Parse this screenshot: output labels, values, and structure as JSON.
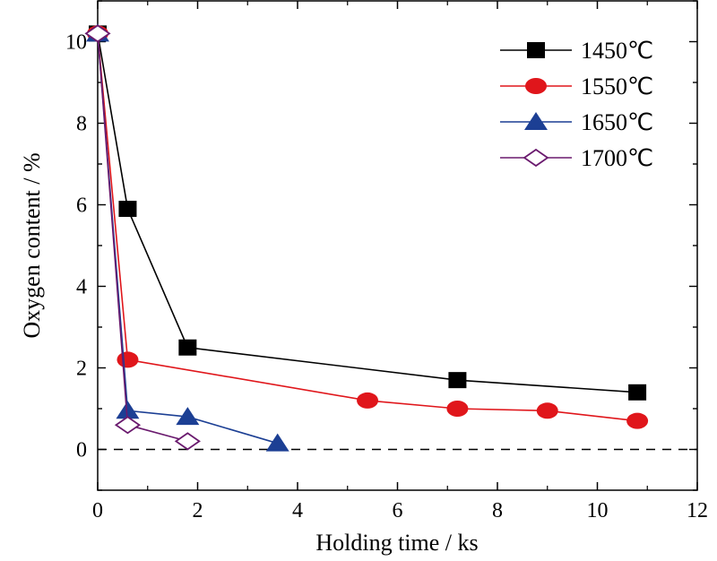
{
  "chart_data": {
    "type": "line",
    "xlabel": "Holding time / ks",
    "ylabel": "Oxygen content / %",
    "xlim": [
      0,
      12
    ],
    "ylim": [
      -1,
      11
    ],
    "xticks": [
      0,
      2,
      4,
      6,
      8,
      10,
      12
    ],
    "yticks": [
      0,
      2,
      4,
      6,
      8,
      10
    ],
    "reference_line": {
      "y": 0,
      "style": "dashed"
    },
    "legend_position": "top-right",
    "grid": false,
    "series": [
      {
        "name": "1450℃",
        "color": "#000000",
        "marker": "square",
        "x": [
          0,
          0.6,
          1.8,
          7.2,
          10.8
        ],
        "y": [
          10.2,
          5.9,
          2.5,
          1.7,
          1.4
        ]
      },
      {
        "name": "1550℃",
        "color": "#e0161b",
        "marker": "circle",
        "x": [
          0,
          0.6,
          5.4,
          7.2,
          9.0,
          10.8
        ],
        "y": [
          10.2,
          2.2,
          1.2,
          1.0,
          0.95,
          0.7
        ]
      },
      {
        "name": "1650℃",
        "color": "#1c3f94",
        "marker": "triangle",
        "x": [
          0,
          0.6,
          1.8,
          3.6
        ],
        "y": [
          10.2,
          0.95,
          0.8,
          0.15
        ]
      },
      {
        "name": "1700℃",
        "color": "#6a1a6e",
        "marker": "diamond-open",
        "x": [
          0,
          0.6,
          1.8
        ],
        "y": [
          10.2,
          0.6,
          0.2
        ]
      }
    ]
  }
}
